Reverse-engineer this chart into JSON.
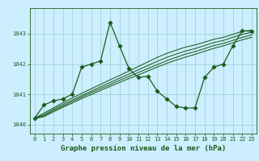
{
  "background_color": "#cceeff",
  "grid_color": "#99cccc",
  "line_color": "#1a5c1a",
  "xlabel": "Graphe pression niveau de la mer (hPa)",
  "ylim": [
    1039.7,
    1043.85
  ],
  "xlim": [
    -0.5,
    23.5
  ],
  "yticks": [
    1040,
    1041,
    1042,
    1043
  ],
  "xticks": [
    0,
    1,
    2,
    3,
    4,
    5,
    6,
    7,
    8,
    9,
    10,
    11,
    12,
    13,
    14,
    15,
    16,
    17,
    18,
    19,
    20,
    21,
    22,
    23
  ],
  "main_line": [
    1040.2,
    1040.65,
    1040.78,
    1040.85,
    1041.0,
    1041.9,
    1042.0,
    1042.1,
    1043.38,
    1042.6,
    1041.85,
    1041.55,
    1041.6,
    1041.1,
    1040.85,
    1040.6,
    1040.55,
    1040.55,
    1041.55,
    1041.9,
    1042.0,
    1042.6,
    1043.1,
    1043.08
  ],
  "band_lines": [
    [
      1040.2,
      1040.38,
      1040.55,
      1040.72,
      1040.88,
      1041.03,
      1041.18,
      1041.33,
      1041.48,
      1041.62,
      1041.77,
      1041.92,
      1042.07,
      1042.22,
      1042.35,
      1042.46,
      1042.56,
      1042.63,
      1042.72,
      1042.82,
      1042.88,
      1042.98,
      1043.08,
      1043.12
    ],
    [
      1040.2,
      1040.33,
      1040.5,
      1040.66,
      1040.81,
      1040.96,
      1041.1,
      1041.25,
      1041.39,
      1041.53,
      1041.67,
      1041.81,
      1041.95,
      1042.09,
      1042.22,
      1042.33,
      1042.43,
      1042.51,
      1042.61,
      1042.71,
      1042.78,
      1042.88,
      1042.98,
      1043.05
    ],
    [
      1040.2,
      1040.29,
      1040.46,
      1040.61,
      1040.76,
      1040.91,
      1041.05,
      1041.19,
      1041.32,
      1041.46,
      1041.59,
      1041.72,
      1041.85,
      1041.98,
      1042.11,
      1042.22,
      1042.33,
      1042.41,
      1042.51,
      1042.61,
      1042.68,
      1042.78,
      1042.88,
      1042.96
    ],
    [
      1040.2,
      1040.26,
      1040.42,
      1040.57,
      1040.71,
      1040.86,
      1040.99,
      1041.13,
      1041.26,
      1041.39,
      1041.52,
      1041.64,
      1041.77,
      1041.9,
      1042.02,
      1042.13,
      1042.23,
      1042.32,
      1042.42,
      1042.52,
      1042.6,
      1042.7,
      1042.8,
      1042.88
    ]
  ],
  "markersize": 2.8,
  "linewidth": 0.9,
  "band_linewidth": 0.75,
  "xlabel_fontsize": 6.5,
  "tick_fontsize": 5.0
}
